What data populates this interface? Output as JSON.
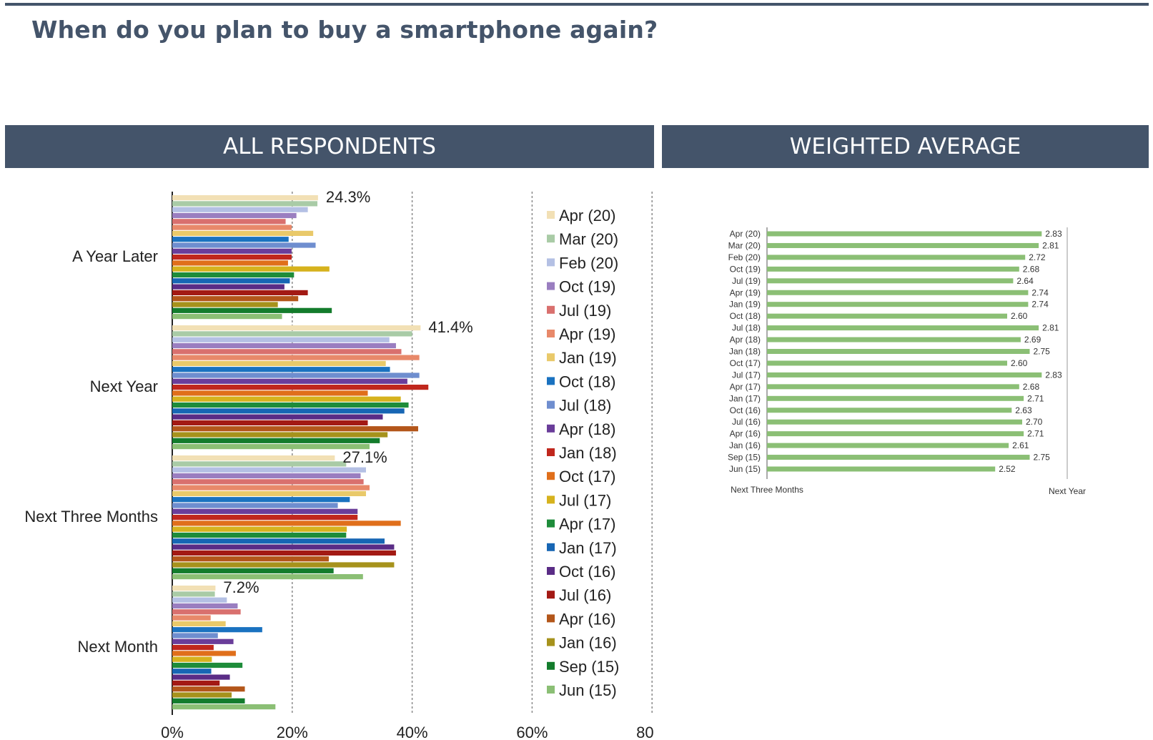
{
  "title": "When do you plan to buy a smartphone again?",
  "panels": {
    "left_header": "ALL RESPONDENTS",
    "right_header": "WEIGHTED AVERAGE"
  },
  "chart_data": [
    {
      "type": "bar",
      "orientation": "horizontal",
      "xlim": [
        0,
        80
      ],
      "x_ticks": [
        "0%",
        "20%",
        "40%",
        "60%",
        "80%"
      ],
      "grid": "vertical dashed",
      "legend_position": "right",
      "categories": [
        "A Year Later",
        "Next Year",
        "Next Three Months",
        "Next Month"
      ],
      "annotations": [
        "24.3%",
        "41.4%",
        "27.1%",
        "7.2%"
      ],
      "series": [
        {
          "name": "Apr (20)",
          "color": "#f2e0b5",
          "values": [
            24.3,
            41.4,
            27.1,
            7.2
          ]
        },
        {
          "name": "Mar (20)",
          "color": "#a9cba6",
          "values": [
            24.2,
            40.0,
            29.0,
            7.1
          ]
        },
        {
          "name": "Feb (20)",
          "color": "#b4c0e4",
          "values": [
            22.6,
            36.2,
            32.3,
            9.1
          ]
        },
        {
          "name": "Oct (19)",
          "color": "#9a7ec0",
          "values": [
            20.7,
            37.3,
            31.4,
            10.9
          ]
        },
        {
          "name": "Jul (19)",
          "color": "#d9706e",
          "values": [
            18.9,
            38.2,
            31.9,
            11.4
          ]
        },
        {
          "name": "Apr (19)",
          "color": "#e8896a",
          "values": [
            19.9,
            41.2,
            32.9,
            6.4
          ]
        },
        {
          "name": "Jan (19)",
          "color": "#e9c96a",
          "values": [
            23.5,
            35.6,
            32.3,
            8.9
          ]
        },
        {
          "name": "Oct (18)",
          "color": "#1a72c0",
          "values": [
            19.4,
            36.3,
            29.6,
            15.0
          ]
        },
        {
          "name": "Jul (18)",
          "color": "#6f8ecf",
          "values": [
            23.9,
            41.2,
            27.6,
            7.6
          ]
        },
        {
          "name": "Apr (18)",
          "color": "#6a3d9a",
          "values": [
            19.9,
            39.2,
            30.9,
            10.2
          ]
        },
        {
          "name": "Jan (18)",
          "color": "#c0271d",
          "values": [
            19.9,
            42.7,
            30.9,
            6.9
          ]
        },
        {
          "name": "Oct (17)",
          "color": "#e06f1b",
          "values": [
            19.3,
            32.6,
            38.1,
            10.6
          ]
        },
        {
          "name": "Jul (17)",
          "color": "#d6b21d",
          "values": [
            26.2,
            38.1,
            29.1,
            6.6
          ]
        },
        {
          "name": "Apr (17)",
          "color": "#1e8c3a",
          "values": [
            20.3,
            39.4,
            29.0,
            11.7
          ]
        },
        {
          "name": "Jan (17)",
          "color": "#1766b4",
          "values": [
            19.6,
            38.7,
            35.4,
            6.5
          ]
        },
        {
          "name": "Oct (16)",
          "color": "#5a2c86",
          "values": [
            18.7,
            35.1,
            37.0,
            9.6
          ]
        },
        {
          "name": "Jul (16)",
          "color": "#a31a14",
          "values": [
            22.6,
            32.6,
            37.3,
            7.9
          ]
        },
        {
          "name": "Apr (16)",
          "color": "#b3561a",
          "values": [
            21.0,
            41.0,
            26.1,
            12.1
          ]
        },
        {
          "name": "Jan (16)",
          "color": "#a6921c",
          "values": [
            17.6,
            35.9,
            37.0,
            9.9
          ]
        },
        {
          "name": "Sep (15)",
          "color": "#137c2c",
          "values": [
            26.6,
            34.6,
            26.9,
            12.1
          ]
        },
        {
          "name": "Jun (15)",
          "color": "#8bbf75",
          "values": [
            18.3,
            32.9,
            31.8,
            17.2
          ]
        }
      ]
    },
    {
      "type": "bar",
      "orientation": "horizontal",
      "x_min_label": "Next Three Months",
      "x_max_label": "Next Year",
      "xlim": [
        1,
        3
      ],
      "categories": [
        "Apr (20)",
        "Mar (20)",
        "Feb (20)",
        "Oct (19)",
        "Jul (19)",
        "Apr (19)",
        "Jan (19)",
        "Oct (18)",
        "Jul (18)",
        "Apr (18)",
        "Jan (18)",
        "Oct (17)",
        "Jul (17)",
        "Apr (17)",
        "Jan (17)",
        "Oct (16)",
        "Jul (16)",
        "Apr (16)",
        "Jan (16)",
        "Sep (15)",
        "Jun (15)"
      ],
      "values": [
        2.83,
        2.81,
        2.72,
        2.68,
        2.64,
        2.74,
        2.74,
        2.6,
        2.81,
        2.69,
        2.75,
        2.6,
        2.83,
        2.68,
        2.71,
        2.63,
        2.7,
        2.71,
        2.61,
        2.75,
        2.52
      ],
      "value_labels": [
        "2.83",
        "2.81",
        "2.72",
        "2.68",
        "2.64",
        "2.74",
        "2.74",
        "2.60",
        "2.81",
        "2.69",
        "2.75",
        "2.60",
        "2.83",
        "2.68",
        "2.71",
        "2.63",
        "2.70",
        "2.71",
        "2.61",
        "2.75",
        "2.52"
      ],
      "bar_color": "#8bbf75"
    }
  ]
}
